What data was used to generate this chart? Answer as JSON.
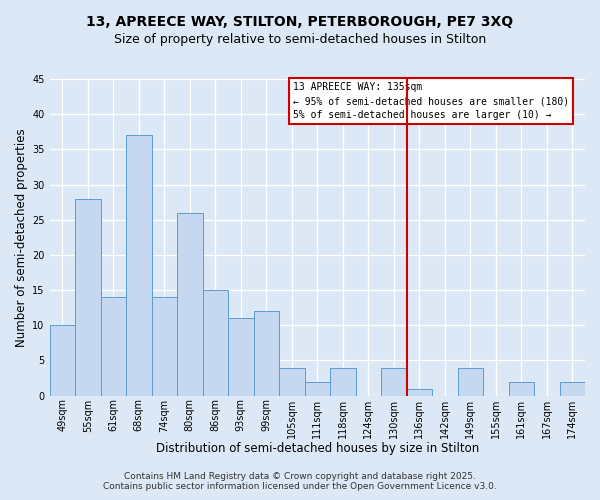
{
  "title": "13, APREECE WAY, STILTON, PETERBOROUGH, PE7 3XQ",
  "subtitle": "Size of property relative to semi-detached houses in Stilton",
  "xlabel": "Distribution of semi-detached houses by size in Stilton",
  "ylabel": "Number of semi-detached properties",
  "bar_labels": [
    "49sqm",
    "55sqm",
    "61sqm",
    "68sqm",
    "74sqm",
    "80sqm",
    "86sqm",
    "93sqm",
    "99sqm",
    "105sqm",
    "111sqm",
    "118sqm",
    "124sqm",
    "130sqm",
    "136sqm",
    "142sqm",
    "149sqm",
    "155sqm",
    "161sqm",
    "167sqm",
    "174sqm"
  ],
  "bar_values": [
    10,
    28,
    14,
    37,
    14,
    26,
    15,
    11,
    12,
    4,
    2,
    4,
    0,
    4,
    1,
    0,
    4,
    0,
    2,
    0,
    2
  ],
  "bar_color": "#c5d8f0",
  "bar_edge_color": "#5b9bd5",
  "ylim": [
    0,
    45
  ],
  "yticks": [
    0,
    5,
    10,
    15,
    20,
    25,
    30,
    35,
    40,
    45
  ],
  "vline_color": "#cc0000",
  "vline_x_index": 14,
  "annotation_title": "13 APREECE WAY: 135sqm",
  "annotation_line1": "← 95% of semi-detached houses are smaller (180)",
  "annotation_line2": "5% of semi-detached houses are larger (10) →",
  "annotation_box_color": "#ffffff",
  "annotation_box_edge": "#cc0000",
  "footer1": "Contains HM Land Registry data © Crown copyright and database right 2025.",
  "footer2": "Contains public sector information licensed under the Open Government Licence v3.0.",
  "fig_background_color": "#dce8f5",
  "plot_background_color": "#dce8f5",
  "grid_color": "#ffffff",
  "title_fontsize": 10,
  "subtitle_fontsize": 9,
  "label_fontsize": 8.5,
  "tick_fontsize": 7,
  "annotation_fontsize": 7,
  "footer_fontsize": 6.5
}
